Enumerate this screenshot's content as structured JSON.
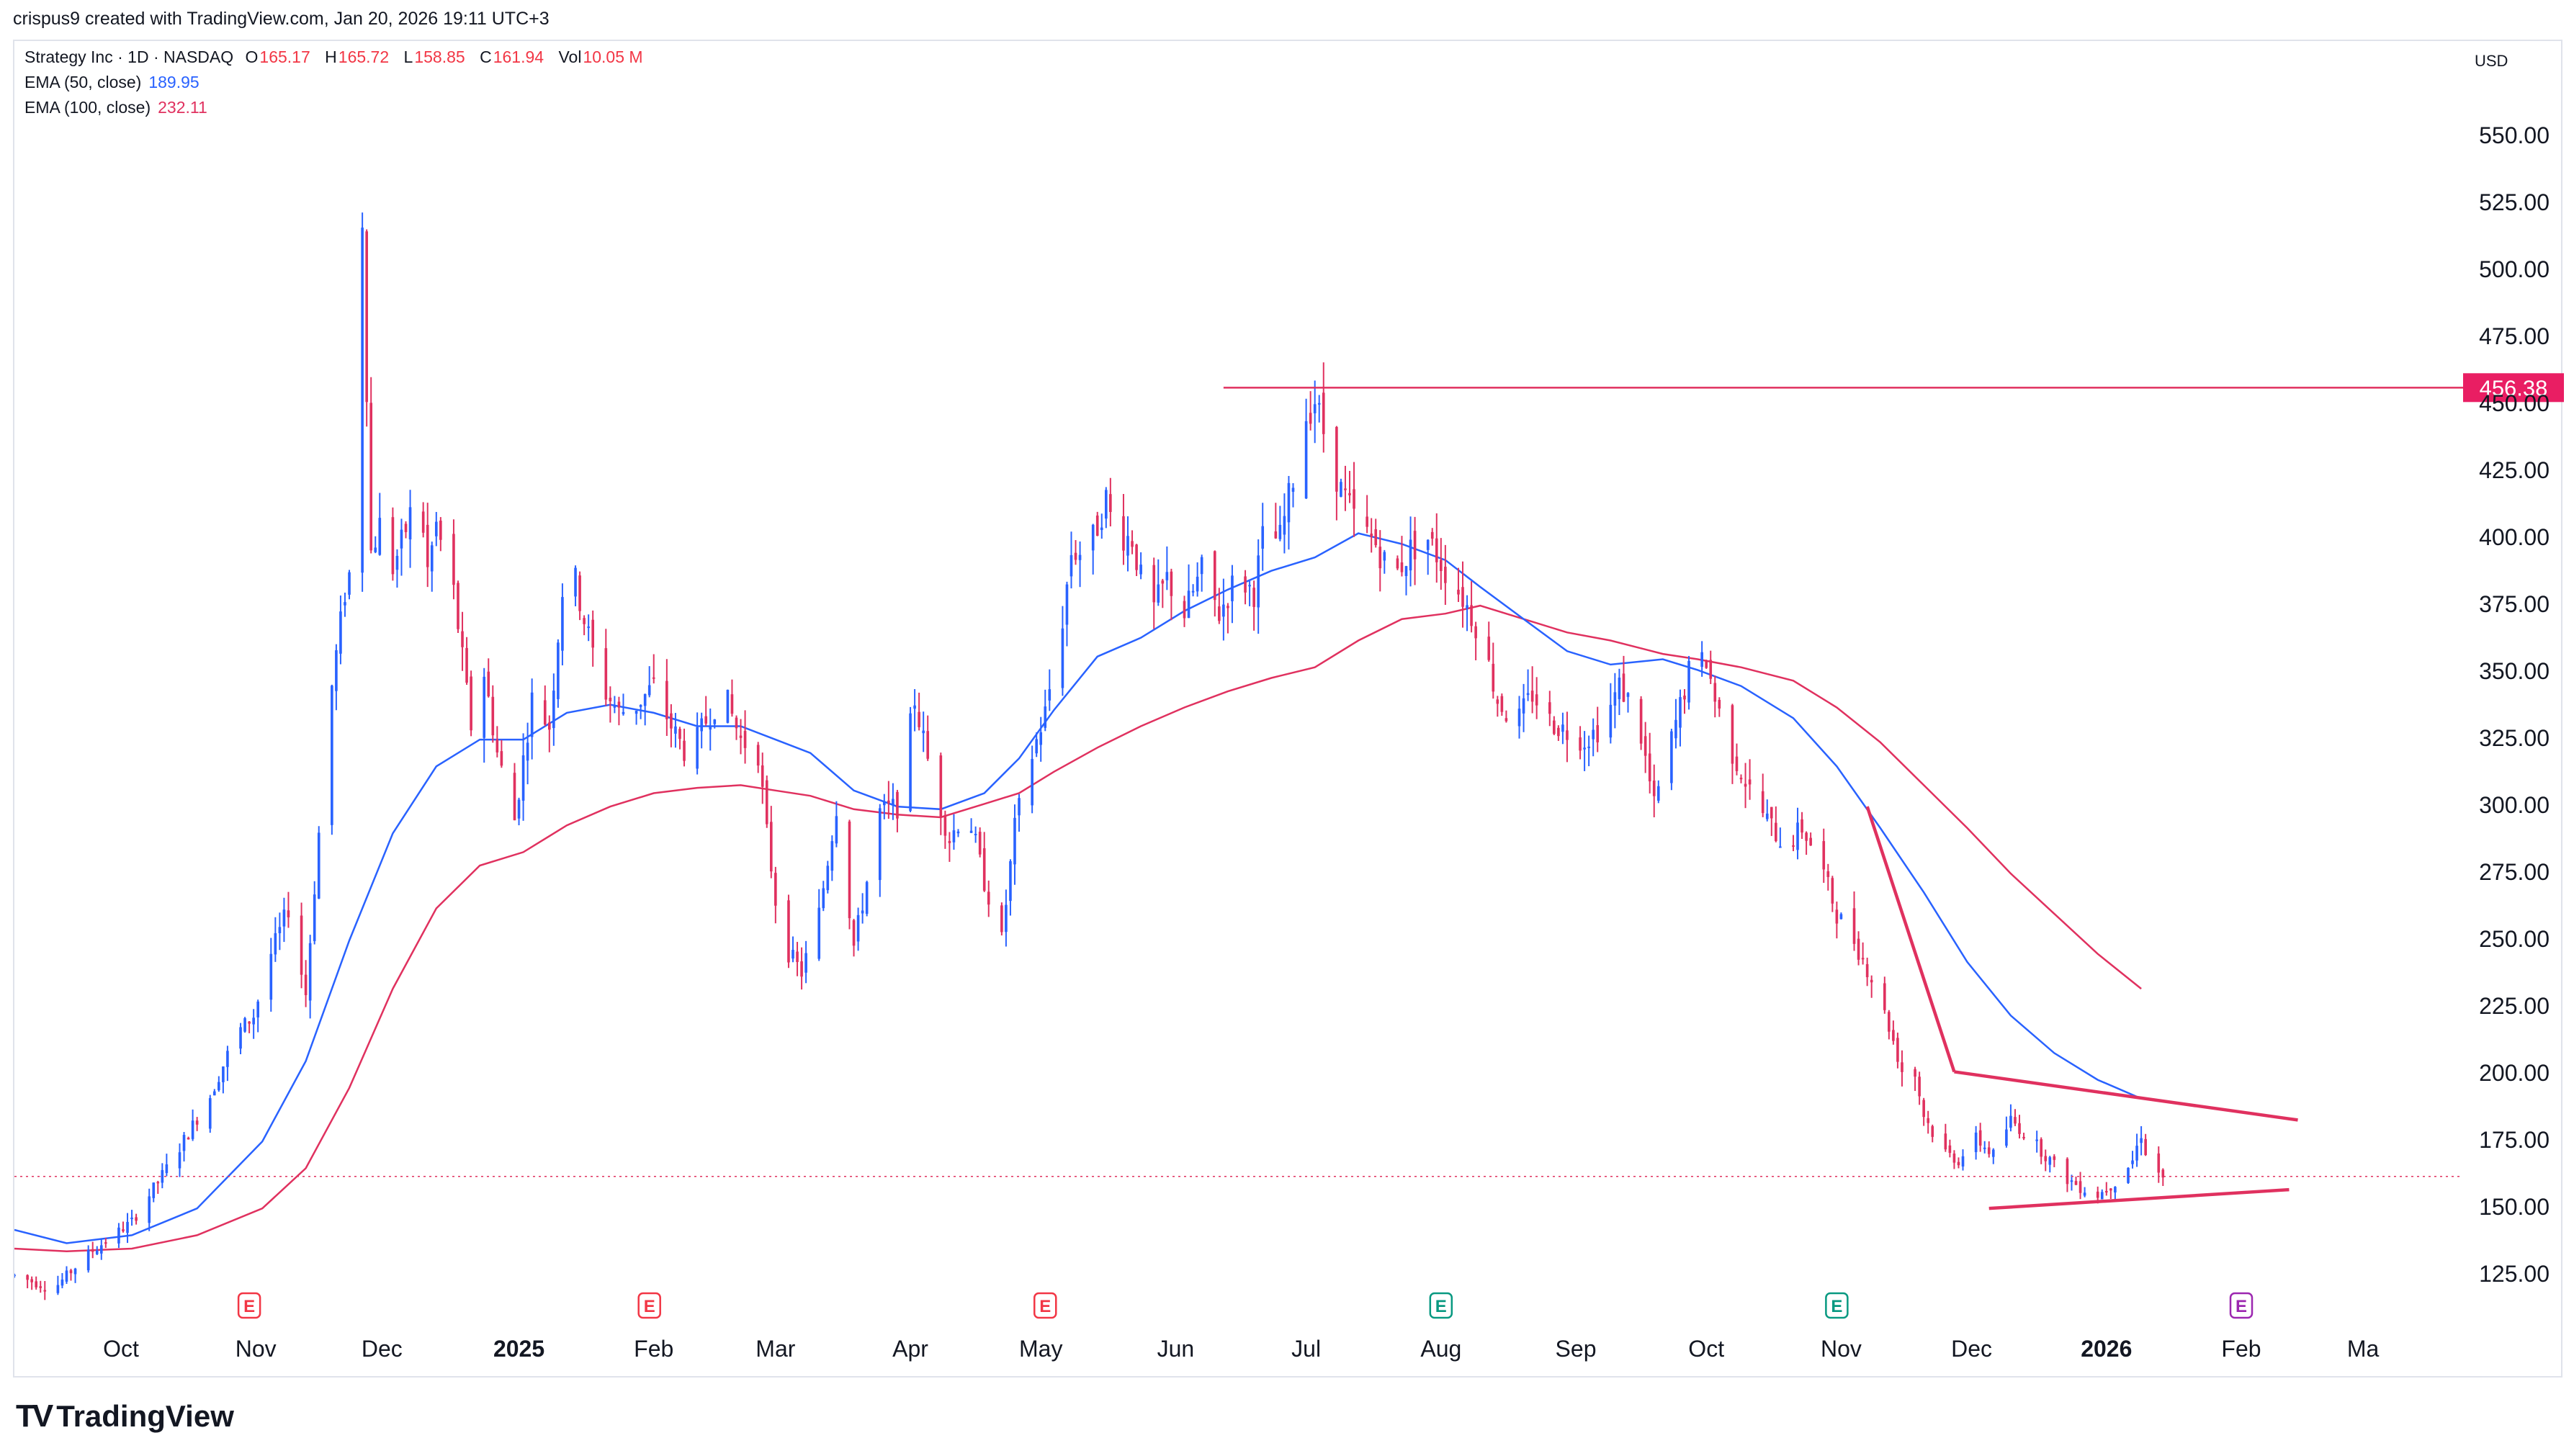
{
  "header": {
    "author_line": "crispus9 created with TradingView.com, Jan 20, 2026 19:11 UTC+3"
  },
  "legend": {
    "symbol": "Strategy Inc · 1D · NASDAQ",
    "o_label": "O",
    "o_value": "165.17",
    "h_label": "H",
    "h_value": "165.72",
    "l_label": "L",
    "l_value": "158.85",
    "c_label": "C",
    "c_value": "161.94",
    "vol_label": "Vol",
    "vol_value": "10.05 M",
    "ema50_label": "EMA (50, close)",
    "ema50_value": "189.95",
    "ema100_label": "EMA (100, close)",
    "ema100_value": "232.11"
  },
  "currency": "USD",
  "branding": {
    "logo_mark": "TV",
    "logo_text": "TradingView"
  },
  "colors": {
    "up": "#2962ff",
    "down": "#e0315f",
    "ema50": "#2962ff",
    "ema100": "#e0315f",
    "resistance": "#e0315f",
    "price_label_bg": "#e91e63"
  },
  "chart_data": {
    "type": "candlestick",
    "title": "Strategy Inc · 1D · NASDAQ",
    "ylim": [
      110,
      575
    ],
    "y_ticks": [
      "550.00",
      "525.00",
      "500.00",
      "475.00",
      "450.00",
      "425.00",
      "400.00",
      "375.00",
      "350.00",
      "325.00",
      "300.00",
      "275.00",
      "250.00",
      "225.00",
      "200.00",
      "175.00",
      "150.00",
      "125.00"
    ],
    "x_ticks": [
      "Oct",
      "Nov",
      "Dec",
      "2025",
      "Feb",
      "Mar",
      "Apr",
      "May",
      "Jun",
      "Jul",
      "Aug",
      "Sep",
      "Oct",
      "Nov",
      "Dec",
      "2026",
      "Feb",
      "Ma"
    ],
    "x_tick_days": [
      7.5,
      38.5,
      67.5,
      99,
      130,
      158,
      189,
      219,
      250,
      280,
      311,
      342,
      372,
      403,
      433,
      464,
      495,
      523
    ],
    "x_range_days": [
      -17,
      546
    ],
    "earnings_markers": [
      {
        "day": 37,
        "label": "E",
        "kind": "red"
      },
      {
        "day": 129,
        "label": "E",
        "kind": "red"
      },
      {
        "day": 220,
        "label": "E",
        "kind": "red"
      },
      {
        "day": 311,
        "label": "E",
        "kind": "green"
      },
      {
        "day": 402,
        "label": "E",
        "kind": "green"
      },
      {
        "day": 495,
        "label": "E",
        "kind": "purple"
      }
    ],
    "resistance_level": 456.38,
    "resistance_label": "456.38",
    "resistance_start_day": 261,
    "current_price": 161.94,
    "pattern_lines": [
      {
        "from": [
          409,
          300
        ],
        "to": [
          429,
          201
        ]
      },
      {
        "from": [
          429,
          201
        ],
        "to": [
          508,
          183
        ]
      },
      {
        "from": [
          437,
          150
        ],
        "to": [
          506,
          157
        ]
      }
    ],
    "ema50_points": [
      [
        -17,
        142
      ],
      [
        -5,
        137
      ],
      [
        10,
        140
      ],
      [
        25,
        150
      ],
      [
        40,
        175
      ],
      [
        50,
        205
      ],
      [
        60,
        250
      ],
      [
        70,
        290
      ],
      [
        80,
        315
      ],
      [
        90,
        325
      ],
      [
        100,
        325
      ],
      [
        110,
        335
      ],
      [
        120,
        338
      ],
      [
        130,
        335
      ],
      [
        140,
        330
      ],
      [
        150,
        330
      ],
      [
        158,
        325
      ],
      [
        166,
        320
      ],
      [
        176,
        306
      ],
      [
        186,
        300
      ],
      [
        196,
        299
      ],
      [
        206,
        305
      ],
      [
        214,
        318
      ],
      [
        222,
        336
      ],
      [
        232,
        356
      ],
      [
        242,
        363
      ],
      [
        252,
        373
      ],
      [
        262,
        381
      ],
      [
        272,
        388
      ],
      [
        282,
        393
      ],
      [
        292,
        402
      ],
      [
        302,
        398
      ],
      [
        312,
        392
      ],
      [
        320,
        382
      ],
      [
        330,
        370
      ],
      [
        340,
        358
      ],
      [
        350,
        353
      ],
      [
        362,
        355
      ],
      [
        370,
        351
      ],
      [
        380,
        345
      ],
      [
        392,
        333
      ],
      [
        402,
        315
      ],
      [
        412,
        292
      ],
      [
        422,
        268
      ],
      [
        432,
        242
      ],
      [
        442,
        222
      ],
      [
        452,
        208
      ],
      [
        462,
        198
      ],
      [
        472,
        191
      ]
    ],
    "ema100_points": [
      [
        -17,
        135
      ],
      [
        -5,
        134
      ],
      [
        10,
        135
      ],
      [
        25,
        140
      ],
      [
        40,
        150
      ],
      [
        50,
        165
      ],
      [
        60,
        195
      ],
      [
        70,
        232
      ],
      [
        80,
        262
      ],
      [
        90,
        278
      ],
      [
        100,
        283
      ],
      [
        110,
        293
      ],
      [
        120,
        300
      ],
      [
        130,
        305
      ],
      [
        140,
        307
      ],
      [
        150,
        308
      ],
      [
        158,
        306
      ],
      [
        166,
        304
      ],
      [
        176,
        299
      ],
      [
        186,
        297
      ],
      [
        196,
        296
      ],
      [
        206,
        301
      ],
      [
        214,
        305
      ],
      [
        222,
        313
      ],
      [
        232,
        322
      ],
      [
        242,
        330
      ],
      [
        252,
        337
      ],
      [
        262,
        343
      ],
      [
        272,
        348
      ],
      [
        282,
        352
      ],
      [
        292,
        362
      ],
      [
        302,
        370
      ],
      [
        312,
        372
      ],
      [
        320,
        375
      ],
      [
        330,
        370
      ],
      [
        340,
        365
      ],
      [
        350,
        362
      ],
      [
        362,
        357
      ],
      [
        370,
        355
      ],
      [
        380,
        352
      ],
      [
        392,
        347
      ],
      [
        402,
        337
      ],
      [
        412,
        324
      ],
      [
        422,
        308
      ],
      [
        432,
        292
      ],
      [
        442,
        275
      ],
      [
        452,
        260
      ],
      [
        462,
        245
      ],
      [
        472,
        232
      ]
    ],
    "candle_anchors": [
      [
        -17,
        125
      ],
      [
        -8,
        120
      ],
      [
        0,
        133
      ],
      [
        10,
        145
      ],
      [
        20,
        170
      ],
      [
        28,
        192
      ],
      [
        34,
        215
      ],
      [
        38,
        222
      ],
      [
        42,
        245
      ],
      [
        46,
        262
      ],
      [
        50,
        230
      ],
      [
        53,
        290
      ],
      [
        56,
        345
      ],
      [
        59,
        380
      ],
      [
        62,
        400
      ],
      [
        63,
        520
      ],
      [
        65,
        395
      ],
      [
        67,
        405
      ],
      [
        69,
        385
      ],
      [
        72,
        398
      ],
      [
        76,
        420
      ],
      [
        78,
        388
      ],
      [
        80,
        405
      ],
      [
        84,
        380
      ],
      [
        88,
        330
      ],
      [
        90,
        360
      ],
      [
        94,
        320
      ],
      [
        98,
        295
      ],
      [
        102,
        340
      ],
      [
        106,
        330
      ],
      [
        110,
        398
      ],
      [
        114,
        370
      ],
      [
        118,
        345
      ],
      [
        122,
        335
      ],
      [
        126,
        338
      ],
      [
        130,
        345
      ],
      [
        134,
        330
      ],
      [
        138,
        318
      ],
      [
        142,
        332
      ],
      [
        146,
        343
      ],
      [
        150,
        325
      ],
      [
        154,
        320
      ],
      [
        156,
        290
      ],
      [
        158,
        265
      ],
      [
        160,
        248
      ],
      [
        164,
        238
      ],
      [
        168,
        260
      ],
      [
        172,
        300
      ],
      [
        176,
        248
      ],
      [
        180,
        280
      ],
      [
        182,
        298
      ],
      [
        186,
        300
      ],
      [
        190,
        340
      ],
      [
        194,
        310
      ],
      [
        198,
        288
      ],
      [
        202,
        300
      ],
      [
        206,
        272
      ],
      [
        210,
        250
      ],
      [
        213,
        292
      ],
      [
        216,
        314
      ],
      [
        220,
        335
      ],
      [
        224,
        370
      ],
      [
        226,
        395
      ],
      [
        230,
        395
      ],
      [
        234,
        415
      ],
      [
        236,
        402
      ],
      [
        240,
        400
      ],
      [
        244,
        370
      ],
      [
        248,
        385
      ],
      [
        252,
        372
      ],
      [
        256,
        388
      ],
      [
        260,
        372
      ],
      [
        264,
        386
      ],
      [
        268,
        380
      ],
      [
        270,
        400
      ],
      [
        274,
        400
      ],
      [
        278,
        430
      ],
      [
        280,
        446
      ],
      [
        282,
        452
      ],
      [
        284,
        440
      ],
      [
        288,
        418
      ],
      [
        292,
        405
      ],
      [
        296,
        398
      ],
      [
        300,
        385
      ],
      [
        304,
        396
      ],
      [
        308,
        400
      ],
      [
        312,
        388
      ],
      [
        316,
        378
      ],
      [
        320,
        365
      ],
      [
        324,
        340
      ],
      [
        328,
        330
      ],
      [
        332,
        342
      ],
      [
        336,
        332
      ],
      [
        340,
        328
      ],
      [
        344,
        325
      ],
      [
        348,
        330
      ],
      [
        352,
        345
      ],
      [
        356,
        335
      ],
      [
        360,
        300
      ],
      [
        364,
        325
      ],
      [
        368,
        350
      ],
      [
        372,
        355
      ],
      [
        374,
        340
      ],
      [
        378,
        320
      ],
      [
        382,
        306
      ],
      [
        386,
        295
      ],
      [
        390,
        285
      ],
      [
        394,
        292
      ],
      [
        398,
        280
      ],
      [
        402,
        260
      ],
      [
        406,
        250
      ],
      [
        410,
        236
      ],
      [
        414,
        218
      ],
      [
        418,
        196
      ],
      [
        420,
        200
      ],
      [
        422,
        185
      ],
      [
        426,
        172
      ],
      [
        430,
        168
      ],
      [
        434,
        176
      ],
      [
        438,
        170
      ],
      [
        442,
        183
      ],
      [
        446,
        177
      ],
      [
        450,
        170
      ],
      [
        454,
        162
      ],
      [
        458,
        158
      ],
      [
        462,
        155
      ],
      [
        466,
        160
      ],
      [
        470,
        168
      ],
      [
        472,
        178
      ],
      [
        474,
        165
      ],
      [
        477,
        162
      ]
    ]
  }
}
